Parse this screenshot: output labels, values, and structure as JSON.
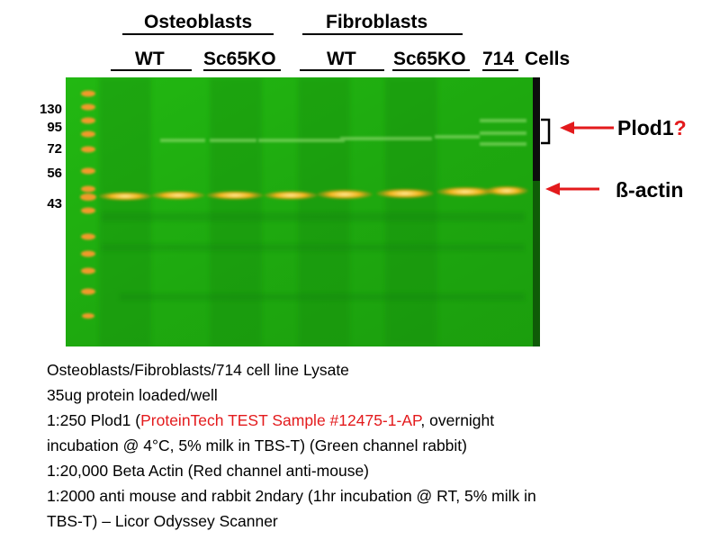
{
  "headers": {
    "group1": "Osteoblasts",
    "group2": "Fibroblasts",
    "lanes": [
      "WT",
      "Sc65KO",
      "WT",
      "Sc65KO",
      "714"
    ],
    "cells_label": "Cells"
  },
  "markers": [
    "130",
    "95",
    "72",
    "56",
    "43"
  ],
  "annotations": {
    "plod1": "Plod1",
    "plod1_q": "?",
    "actin": "ß-actin"
  },
  "notes": {
    "line1": "Osteoblasts/Fibroblasts/714  cell line Lysate",
    "line2": "35ug protein loaded/well",
    "line3_a": "1:250 Plod1 (",
    "line3_red": "ProteinTech TEST Sample #12475-1-AP",
    "line3_b": ", overnight",
    "line4": "incubation @ 4°C, 5% milk in TBS-T) (Green channel rabbit)",
    "line5": "1:20,000 Beta Actin (Red channel anti-mouse)",
    "line6": "1:2000 anti mouse and rabbit 2ndary (1hr incubation @ RT, 5% milk in",
    "line7": "TBS-T) – Licor Odyssey Scanner"
  },
  "colors": {
    "membrane": "#1fb10f",
    "actin_band": "#f2b21a",
    "ladder": "#f29a2a",
    "arrow": "#e31a1c",
    "highlight_text": "#e31a1c"
  }
}
